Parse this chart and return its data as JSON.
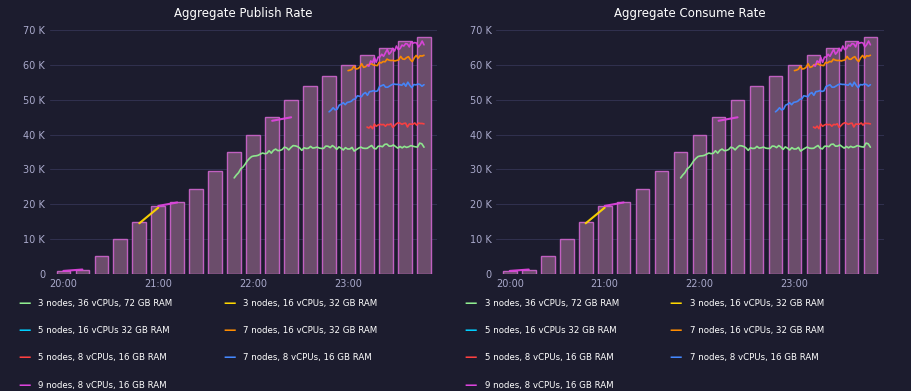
{
  "bg_color": "#1c1c2e",
  "plot_bg_color": "#1c1c2e",
  "text_color": "#ffffff",
  "grid_color": "#3a3a5c",
  "title_publish": "Aggregate Publish Rate",
  "title_consume": "Aggregate Consume Rate",
  "ylim": [
    0,
    72000
  ],
  "yticks": [
    0,
    10000,
    20000,
    30000,
    40000,
    50000,
    60000,
    70000
  ],
  "ytick_labels": [
    "0",
    "10 K",
    "20 K",
    "30 K",
    "40 K",
    "50 K",
    "60 K",
    "70 K"
  ],
  "xtick_labels": [
    "20:00",
    "21:00",
    "22:00",
    "23:00"
  ],
  "xtick_pos": [
    0,
    5,
    10,
    15
  ],
  "bar_color": "#6b4d6b",
  "bar_edge_color": "#c060c0",
  "n_bars": 20,
  "bar_heights": [
    800,
    1200,
    5000,
    10000,
    15000,
    19500,
    20500,
    24500,
    29500,
    35000,
    40000,
    45000,
    50000,
    54000,
    57000,
    60000,
    63000,
    65000,
    67000,
    68000
  ],
  "series": [
    {
      "key": "green",
      "label": "3 nodes, 36 vCPUs, 72 GB RAM",
      "color": "#90ee90"
    },
    {
      "key": "yellow",
      "label": "3 nodes, 16 vCPUs, 32 GB RAM",
      "color": "#ffd700"
    },
    {
      "key": "cyan",
      "label": "5 nodes, 16 vCPUs 32 GB RAM",
      "color": "#00cfff"
    },
    {
      "key": "orange",
      "label": "7 nodes, 16 vCPUs, 32 GB RAM",
      "color": "#ff8c00"
    },
    {
      "key": "red",
      "label": "5 nodes, 8 vCPUs, 16 GB RAM",
      "color": "#ff4040"
    },
    {
      "key": "blue",
      "label": "7 nodes, 8 vCPUs, 16 GB RAM",
      "color": "#4488ff"
    },
    {
      "key": "magenta",
      "label": "9 nodes, 8 vCPUs, 16 GB RAM",
      "color": "#dd44dd"
    }
  ],
  "publish_lines": {
    "magenta": [
      800,
      1200,
      null,
      null,
      null,
      19500,
      20500,
      null,
      null,
      null,
      null,
      44000,
      45000,
      null,
      null,
      null,
      60000,
      63500,
      65500,
      66500
    ],
    "green": [
      null,
      null,
      null,
      null,
      null,
      null,
      null,
      null,
      null,
      28000,
      34000,
      35500,
      36500,
      36000,
      36500,
      36000,
      36500,
      37000,
      36500,
      37000
    ],
    "yellow": [
      null,
      null,
      null,
      null,
      14500,
      19000,
      null,
      null,
      null,
      null,
      null,
      null,
      null,
      null,
      null,
      null,
      null,
      null,
      null,
      null
    ],
    "cyan": [
      null,
      null,
      null,
      null,
      null,
      null,
      null,
      null,
      null,
      null,
      null,
      null,
      null,
      null,
      null,
      null,
      null,
      null,
      null,
      null
    ],
    "orange": [
      null,
      null,
      null,
      null,
      null,
      null,
      null,
      null,
      null,
      null,
      null,
      null,
      null,
      null,
      null,
      59000,
      60000,
      61000,
      62000,
      62500
    ],
    "red": [
      null,
      null,
      null,
      null,
      null,
      null,
      null,
      null,
      null,
      null,
      null,
      null,
      null,
      null,
      null,
      null,
      42000,
      43000,
      43500,
      43000
    ],
    "blue": [
      null,
      null,
      null,
      null,
      null,
      null,
      null,
      null,
      null,
      null,
      null,
      null,
      null,
      null,
      47000,
      49000,
      52000,
      54000,
      54500,
      54000
    ]
  },
  "consume_lines": {
    "magenta": [
      800,
      1200,
      null,
      null,
      null,
      19500,
      20500,
      null,
      null,
      null,
      null,
      44000,
      45000,
      null,
      null,
      null,
      60000,
      63500,
      65500,
      66500
    ],
    "green": [
      null,
      null,
      null,
      null,
      null,
      null,
      null,
      null,
      null,
      28000,
      34000,
      35500,
      36500,
      36000,
      36500,
      36000,
      36500,
      37000,
      36500,
      37000
    ],
    "yellow": [
      null,
      null,
      null,
      null,
      14500,
      19000,
      null,
      null,
      null,
      null,
      null,
      null,
      null,
      null,
      null,
      null,
      null,
      null,
      null,
      null
    ],
    "cyan": [
      null,
      null,
      null,
      null,
      null,
      null,
      null,
      null,
      null,
      null,
      null,
      null,
      null,
      null,
      null,
      null,
      null,
      null,
      null,
      null
    ],
    "orange": [
      null,
      null,
      null,
      null,
      null,
      null,
      null,
      null,
      null,
      null,
      null,
      null,
      null,
      null,
      null,
      59000,
      60000,
      61000,
      62000,
      62500
    ],
    "red": [
      null,
      null,
      null,
      null,
      null,
      null,
      null,
      null,
      null,
      null,
      null,
      null,
      null,
      null,
      null,
      null,
      42000,
      43000,
      43500,
      43000
    ],
    "blue": [
      null,
      null,
      null,
      null,
      null,
      null,
      null,
      null,
      null,
      null,
      null,
      null,
      null,
      null,
      47000,
      49000,
      52000,
      54000,
      54500,
      54000
    ]
  },
  "legend_left_col1": [
    {
      "label": "3 nodes, 36 vCPUs, 72 GB RAM",
      "color": "#90ee90"
    },
    {
      "label": "5 nodes, 16 vCPUs 32 GB RAM",
      "color": "#00cfff"
    },
    {
      "label": "5 nodes, 8 vCPUs, 16 GB RAM",
      "color": "#ff4040"
    },
    {
      "label": "9 nodes, 8 vCPUs, 16 GB RAM",
      "color": "#dd44dd"
    }
  ],
  "legend_left_col2": [
    {
      "label": "3 nodes, 16 vCPUs, 32 GB RAM",
      "color": "#ffd700"
    },
    {
      "label": "7 nodes, 16 vCPUs, 32 GB RAM",
      "color": "#ff8c00"
    },
    {
      "label": "7 nodes, 8 vCPUs, 16 GB RAM",
      "color": "#4488ff"
    }
  ]
}
